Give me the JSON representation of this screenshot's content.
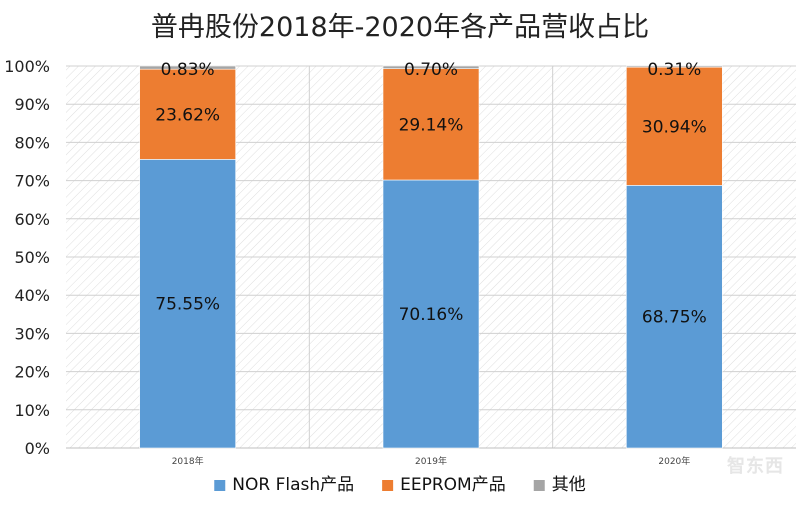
{
  "chart_data": {
    "type": "bar",
    "stacked": true,
    "title": "普冉股份2018年-2020年各产品营收占比",
    "categories": [
      "2018年",
      "2019年",
      "2020年"
    ],
    "series": [
      {
        "name": "NOR Flash产品",
        "color": "#5b9bd5",
        "values": [
          75.55,
          70.16,
          68.75
        ],
        "labels": [
          "75.55%",
          "70.16%",
          "68.75%"
        ]
      },
      {
        "name": "EEPROM产品",
        "color": "#ed7d31",
        "values": [
          23.62,
          29.14,
          30.94
        ],
        "labels": [
          "23.62%",
          "29.14%",
          "30.94%"
        ]
      },
      {
        "name": "其他",
        "color": "#a5a5a5",
        "values": [
          0.83,
          0.7,
          0.31
        ],
        "labels": [
          "0.83%",
          "0.70%",
          "0.31%"
        ]
      }
    ],
    "ylim": [
      0,
      100
    ],
    "yticks": [
      "0%",
      "10%",
      "20%",
      "30%",
      "40%",
      "50%",
      "60%",
      "70%",
      "80%",
      "90%",
      "100%"
    ],
    "legend_position": "bottom",
    "grid": true
  },
  "watermark": "智东西"
}
